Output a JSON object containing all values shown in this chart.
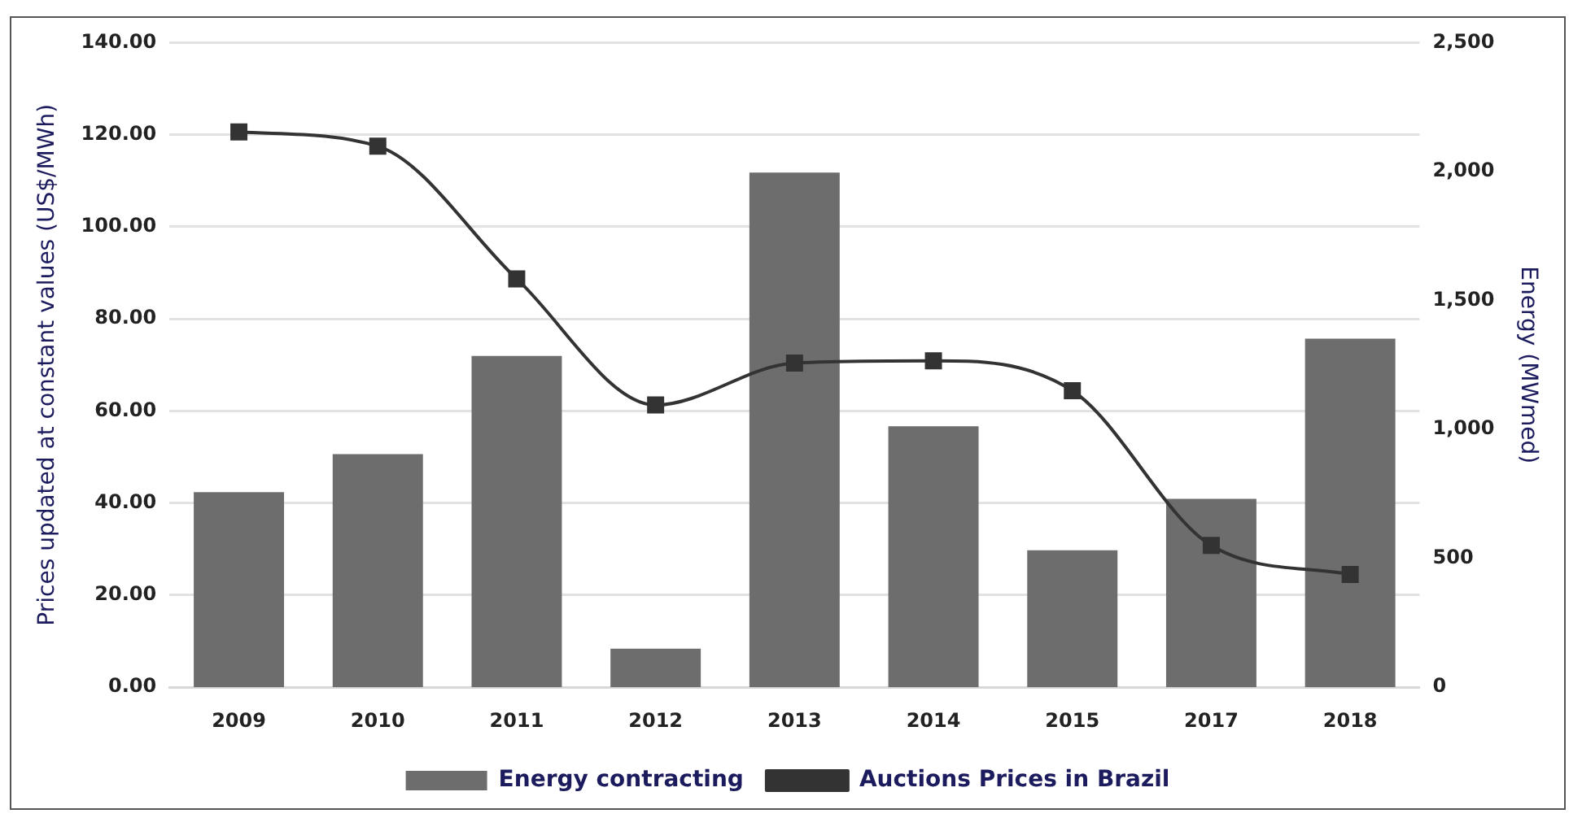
{
  "chart_data": {
    "type": "bar",
    "categories": [
      "2009",
      "2010",
      "2011",
      "2012",
      "2013",
      "2014",
      "2015",
      "2017",
      "2018"
    ],
    "ylabel": "Prices updated at constant values (US$/MWh)",
    "y2label": "Energy (MWmed)",
    "series": [
      {
        "name": "Energy contracting",
        "axis": "y2",
        "color": "#6d6d6d",
        "values": [
          757,
          904,
          1285,
          150,
          1996,
          1012,
          531,
          731,
          1352
        ]
      },
      {
        "name": "Auctions Prices in Brazil",
        "type": "line",
        "axis": "y",
        "color": "#333333",
        "marker": "square",
        "values": [
          120.6,
          117.5,
          88.7,
          61.3,
          70.4,
          70.9,
          64.4,
          30.8,
          24.5
        ]
      }
    ],
    "ylim": [
      0,
      140
    ],
    "yticks": [
      {
        "value": 0,
        "label": "0.00"
      },
      {
        "value": 20,
        "label": "20.00"
      },
      {
        "value": 40,
        "label": "40.00"
      },
      {
        "value": 60,
        "label": "60.00"
      },
      {
        "value": 80,
        "label": "80.00"
      },
      {
        "value": 100,
        "label": "100.00"
      },
      {
        "value": 120,
        "label": "120.00"
      },
      {
        "value": 140,
        "label": "140.00"
      }
    ],
    "y2lim": [
      0,
      2500
    ],
    "y2ticks": [
      0,
      {
        "value": 500,
        "label": "500"
      },
      {
        "value": 1000,
        "label": "1,000"
      },
      {
        "value": 1500,
        "label": "1,500"
      },
      {
        "value": 2000,
        "label": "2,000"
      },
      {
        "value": 2500,
        "label": "2,500"
      }
    ],
    "grid": "y",
    "legend": "bottom"
  }
}
